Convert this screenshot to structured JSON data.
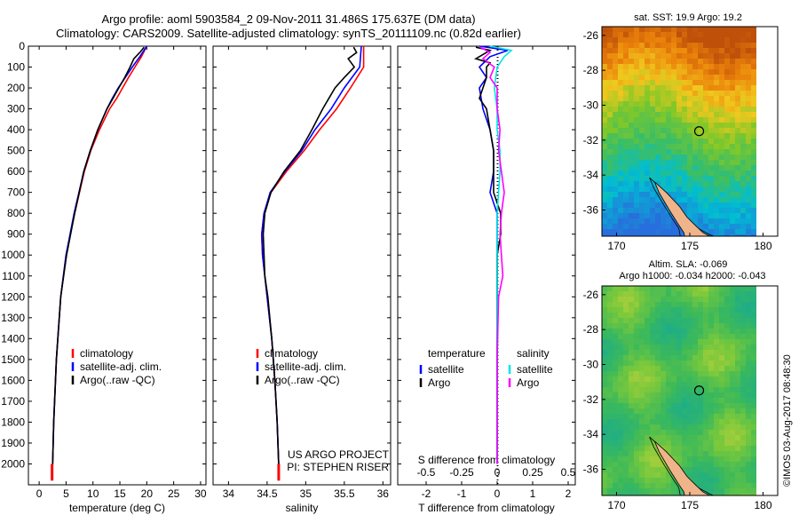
{
  "title": {
    "line1": "Argo profile: aoml 5903584_2 09-Nov-2011 31.486S 175.637E (DM data)",
    "line2": "Climatology: CARS2009. Satellite-adjusted climatology: synTS_20111109.nc (0.82d earlier)"
  },
  "colors": {
    "climatology": "#ff0000",
    "satellite": "#0000ff",
    "argo": "#000000",
    "sal_satellite": "#00e5e5",
    "sal_argo": "#ff00ff",
    "land": "#f0b48a"
  },
  "chart_data": [
    {
      "id": "temperature",
      "type": "line",
      "xlabel": "temperature (deg C)",
      "ylabel": "",
      "xlim": [
        -2,
        31
      ],
      "ylim": [
        2100,
        0
      ],
      "xticks": [
        "0",
        "5",
        "10",
        "15",
        "20",
        "25",
        "30"
      ],
      "yticks": [
        "0",
        "100",
        "200",
        "300",
        "400",
        "500",
        "600",
        "700",
        "800",
        "900",
        "1000",
        "1100",
        "1200",
        "1300",
        "1400",
        "1500",
        "1600",
        "1700",
        "1800",
        "1900",
        "2000"
      ],
      "legend": [
        "climatology",
        "satellite-adj. clim.",
        "Argo(..raw -QC)"
      ],
      "series": [
        {
          "name": "climatology",
          "depth": [
            0,
            50,
            100,
            150,
            200,
            250,
            300,
            400,
            500,
            600,
            800,
            1000,
            1200,
            1500,
            1800,
            2000,
            2050
          ],
          "values": [
            20.0,
            19.0,
            17.8,
            16.6,
            15.5,
            14.4,
            13.1,
            11.2,
            9.6,
            8.4,
            6.6,
            5.0,
            4.0,
            3.2,
            2.7,
            2.5,
            2.4
          ]
        },
        {
          "name": "satellite-adj. clim.",
          "depth": [
            0,
            50,
            100,
            150,
            200,
            250,
            300,
            400,
            500,
            600,
            800,
            1000,
            1200,
            1500,
            1800,
            2000,
            2050
          ],
          "values": [
            20.0,
            18.7,
            17.3,
            16.0,
            14.7,
            13.6,
            12.6,
            10.9,
            9.5,
            8.3,
            6.5,
            5.0,
            4.0,
            3.2,
            2.7,
            2.5,
            2.4
          ]
        },
        {
          "name": "Argo(..raw -QC)",
          "depth": [
            5,
            30,
            60,
            100,
            150,
            200,
            250,
            300,
            400,
            500,
            600,
            800,
            1000,
            1200,
            1500,
            1800,
            2000
          ],
          "values": [
            19.5,
            18.7,
            17.6,
            16.9,
            15.9,
            14.8,
            13.7,
            12.6,
            10.9,
            9.5,
            8.3,
            6.6,
            5.1,
            4.0,
            3.2,
            2.7,
            2.5
          ]
        }
      ]
    },
    {
      "id": "salinity",
      "type": "line",
      "xlabel": "salinity",
      "ylabel": "",
      "xlim": [
        33.8,
        36.1
      ],
      "ylim": [
        2100,
        0
      ],
      "xticks": [
        "34",
        "34.5",
        "35",
        "35.5",
        "36"
      ],
      "legend": [
        "climatology",
        "satellite-adj. clim.",
        "Argo(..raw -QC)"
      ],
      "annotation": [
        "US ARGO PROJECT",
        "PI: STEPHEN RISER"
      ],
      "series": [
        {
          "name": "climatology",
          "depth": [
            0,
            100,
            200,
            300,
            400,
            500,
            600,
            700,
            800,
            900,
            1000,
            1100,
            1200,
            1400,
            1600,
            1800,
            2000,
            2050
          ],
          "values": [
            35.75,
            35.75,
            35.58,
            35.4,
            35.18,
            34.98,
            34.75,
            34.55,
            34.46,
            34.43,
            34.44,
            34.47,
            34.5,
            34.56,
            34.6,
            34.63,
            34.65,
            34.65
          ]
        },
        {
          "name": "satellite-adj. clim.",
          "depth": [
            0,
            100,
            200,
            300,
            400,
            500,
            600,
            700,
            800,
            900,
            1000,
            1100,
            1200,
            1400,
            1600,
            1800,
            2000,
            2050
          ],
          "values": [
            35.72,
            35.7,
            35.5,
            35.33,
            35.12,
            34.95,
            34.73,
            34.54,
            34.46,
            34.43,
            34.44,
            34.47,
            34.5,
            34.56,
            34.6,
            34.63,
            34.65,
            34.65
          ]
        },
        {
          "name": "Argo(..raw -QC)",
          "depth": [
            5,
            30,
            60,
            100,
            150,
            200,
            250,
            300,
            400,
            500,
            600,
            700,
            800,
            900,
            1000,
            1100,
            1200,
            1400,
            1600,
            1800,
            2000
          ],
          "values": [
            35.62,
            35.66,
            35.55,
            35.63,
            35.5,
            35.38,
            35.3,
            35.22,
            35.08,
            34.93,
            34.72,
            34.55,
            34.47,
            34.45,
            34.46,
            34.47,
            34.51,
            34.56,
            34.6,
            34.63,
            34.65
          ]
        }
      ]
    },
    {
      "id": "difference",
      "type": "line",
      "xlabel": "T difference from climatology",
      "top_label": "S difference from climatology",
      "xlim": [
        -2.8,
        2.2
      ],
      "ylim": [
        2100,
        0
      ],
      "xticks": [
        "-2",
        "-1",
        "0",
        "1",
        "2"
      ],
      "sticks": [
        "-0.5",
        "-0.25",
        "0",
        "0.25",
        "0.5"
      ],
      "legend_titles": [
        "temperature",
        "salinity"
      ],
      "legend": [
        "satellite",
        "Argo",
        "satellite",
        "Argo"
      ],
      "series": [
        {
          "name": "temperature satellite",
          "depth": [
            0,
            20,
            50,
            100,
            150,
            200,
            300,
            400,
            500,
            600,
            700,
            800,
            1000,
            1200,
            1500,
            2000
          ],
          "values": [
            -0.5,
            0.3,
            -0.2,
            -0.5,
            -0.3,
            -0.5,
            -0.4,
            -0.2,
            -0.1,
            -0.1,
            -0.2,
            0.0,
            0.0,
            0.0,
            0.0,
            0.0
          ]
        },
        {
          "name": "temperature Argo",
          "depth": [
            5,
            20,
            40,
            60,
            80,
            100,
            150,
            200,
            250,
            300,
            400,
            500,
            600,
            700,
            800,
            900,
            1000,
            1200,
            1500,
            2000
          ],
          "values": [
            -0.6,
            -0.2,
            -0.4,
            -0.6,
            -0.2,
            -0.3,
            -0.3,
            -0.4,
            -0.5,
            -0.3,
            -0.2,
            -0.1,
            -0.1,
            -0.1,
            0.1,
            0.1,
            0.0,
            0.0,
            0.0,
            0.0
          ]
        },
        {
          "name": "salinity satellite",
          "depth": [
            0,
            20,
            50,
            100,
            200,
            300,
            400,
            500,
            600,
            800,
            1000,
            1200,
            1500,
            2000
          ],
          "values": [
            -0.05,
            0.1,
            0.05,
            0.0,
            -0.02,
            0.0,
            0.0,
            0.02,
            0.02,
            0.0,
            0.0,
            0.0,
            0.0,
            0.0
          ]
        },
        {
          "name": "salinity Argo",
          "depth": [
            5,
            30,
            60,
            100,
            150,
            200,
            300,
            400,
            500,
            600,
            700,
            800,
            900,
            1000,
            1100,
            1200,
            1500,
            2000
          ],
          "values": [
            -0.12,
            -0.05,
            -0.1,
            -0.02,
            -0.05,
            0.0,
            0.0,
            0.02,
            0.01,
            0.03,
            0.05,
            0.03,
            0.02,
            0.03,
            0.04,
            0.01,
            0.0,
            0.0
          ]
        }
      ]
    }
  ],
  "maps": {
    "sst": {
      "title": "sat. SST: 19.9  Argo: 19.2",
      "xticks": [
        "170",
        "175",
        "180"
      ],
      "yticks": [
        "-26",
        "-28",
        "-30",
        "-32",
        "-34",
        "-36"
      ],
      "lon": [
        169,
        181
      ],
      "lat": [
        -25.5,
        -37.5
      ],
      "argo_position": [
        175.637,
        -31.486
      ]
    },
    "sla": {
      "title1": "Altim. SLA: -0.069",
      "title2": "Argo h1000: -0.034  h2000: -0.043",
      "xticks": [
        "170",
        "175",
        "180"
      ],
      "yticks": [
        "-26",
        "-28",
        "-30",
        "-32",
        "-34",
        "-36"
      ],
      "lon": [
        169,
        181
      ],
      "lat": [
        -25.5,
        -37.5
      ],
      "argo_position": [
        175.637,
        -31.486
      ]
    }
  },
  "credit": "©IMOS 03-Aug-2017 08:48:30"
}
